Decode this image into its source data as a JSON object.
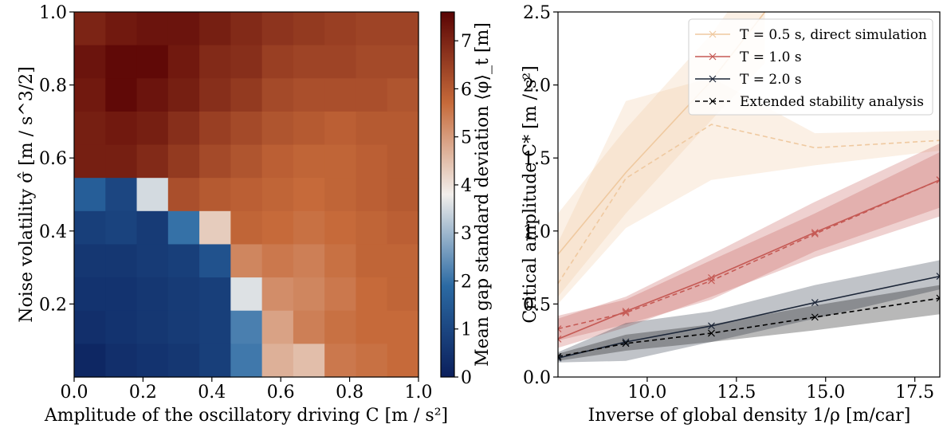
{
  "chart_data": [
    {
      "type": "heatmap",
      "xlabel": "Amplitude of the oscillatory driving C  [m / s²]",
      "ylabel": "Noise volatility σ̂  [m / s^3/2]",
      "xlim": [
        0.0,
        1.0
      ],
      "ylim": [
        0.0,
        1.0
      ],
      "x_ticks": [
        "0.0",
        "0.2",
        "0.4",
        "0.6",
        "0.8",
        "1.0"
      ],
      "y_ticks": [
        "0.2",
        "0.4",
        "0.6",
        "0.8",
        "1.0"
      ],
      "colorbar": {
        "label": "Mean gap standard deviation ⟨φ⟩_t [m]",
        "range": [
          0,
          7.6
        ],
        "ticks": [
          "0",
          "1",
          "2",
          "3",
          "4",
          "5",
          "6",
          "7"
        ],
        "colormap": [
          "#0b1f5c",
          "#2b6aa3",
          "#f2efec",
          "#c66a3a",
          "#5a0404"
        ]
      },
      "grid_size": [
        11,
        11
      ],
      "rows_top_to_bottom": [
        [
          7.0,
          7.2,
          7.3,
          7.3,
          7.1,
          6.9,
          6.7,
          6.6,
          6.5,
          6.4,
          6.4
        ],
        [
          7.3,
          7.5,
          7.5,
          7.2,
          6.9,
          6.8,
          6.5,
          6.4,
          6.4,
          6.3,
          6.3
        ],
        [
          7.2,
          7.5,
          7.3,
          7.1,
          6.8,
          6.6,
          6.3,
          6.2,
          6.2,
          6.2,
          6.1
        ],
        [
          7.1,
          7.2,
          7.1,
          6.8,
          6.5,
          6.3,
          6.1,
          6.0,
          5.9,
          6.0,
          6.0
        ],
        [
          7.1,
          7.1,
          6.9,
          6.6,
          6.3,
          6.1,
          5.9,
          5.8,
          5.8,
          5.9,
          6.0
        ],
        [
          1.6,
          1.0,
          3.5,
          6.2,
          6.0,
          5.9,
          5.8,
          5.7,
          5.8,
          5.9,
          6.0
        ],
        [
          0.8,
          0.9,
          0.7,
          2.0,
          4.3,
          5.8,
          5.7,
          5.6,
          5.7,
          5.8,
          5.9
        ],
        [
          0.6,
          0.6,
          0.7,
          0.8,
          1.3,
          5.3,
          5.5,
          5.4,
          5.6,
          5.8,
          5.8
        ],
        [
          0.5,
          0.5,
          0.6,
          0.7,
          0.8,
          3.6,
          5.2,
          5.3,
          5.5,
          5.7,
          5.8
        ],
        [
          0.4,
          0.5,
          0.6,
          0.7,
          0.8,
          2.2,
          4.9,
          5.4,
          5.6,
          5.7,
          5.7
        ],
        [
          0.2,
          0.4,
          0.5,
          0.6,
          0.8,
          2.1,
          4.7,
          4.5,
          5.5,
          5.6,
          5.7
        ]
      ]
    },
    {
      "type": "line",
      "xlabel": "Inverse of global density 1/ρ [m/car]",
      "ylabel": "Critical amplitude C* [m / s²]",
      "xlim": [
        7.5,
        18.2
      ],
      "ylim": [
        0.0,
        2.5
      ],
      "x_ticks": [
        "10.0",
        "12.5",
        "15.0",
        "17.5"
      ],
      "y_ticks": [
        "0.0",
        "0.5",
        "1.0",
        "1.5",
        "2.0",
        "2.5"
      ],
      "grid": false,
      "legend_position": "top-right",
      "legend": [
        {
          "label": "T = 0.5 s, direct simulation",
          "color": "#efc9a0",
          "style": "solid"
        },
        {
          "label": "T = 1.0 s",
          "color": "#c55a55",
          "style": "solid"
        },
        {
          "label": "T = 2.0 s",
          "color": "#1c2638",
          "style": "solid"
        },
        {
          "label": "Extended stability analysis",
          "color": "#000000",
          "style": "dashed"
        }
      ],
      "series": [
        {
          "color": "#efc9a0",
          "style": "solid",
          "markers": false,
          "x": [
            7.5,
            9.4,
            11.8,
            13.3
          ],
          "y": [
            0.84,
            1.4,
            2.03,
            2.5
          ],
          "band": [
            [
              0.55,
              1.12
            ],
            [
              1.12,
              1.7
            ],
            [
              1.76,
              2.35
            ],
            [
              2.15,
              2.85
            ]
          ]
        },
        {
          "color": "#efc9a0",
          "style": "dashed",
          "markers": false,
          "x": [
            7.5,
            9.4,
            11.8,
            14.7,
            18.2
          ],
          "y": [
            0.64,
            1.36,
            1.73,
            1.57,
            1.62
          ],
          "band": [
            [
              0.5,
              0.92
            ],
            [
              1.02,
              1.89
            ],
            [
              1.35,
              2.05
            ],
            [
              1.45,
              1.67
            ],
            [
              1.55,
              1.69
            ]
          ]
        },
        {
          "color": "#c55a55",
          "style": "solid",
          "markers": true,
          "x": [
            7.5,
            9.4,
            11.8,
            14.7,
            18.2
          ],
          "y": [
            0.26,
            0.45,
            0.68,
            0.99,
            1.35
          ],
          "band": [
            [
              0.2,
              0.4
            ],
            [
              0.34,
              0.55
            ],
            [
              0.55,
              0.84
            ],
            [
              0.82,
              1.2
            ],
            [
              1.1,
              1.6
            ]
          ]
        },
        {
          "color": "#c55a55",
          "style": "dashed",
          "markers": true,
          "x": [
            7.5,
            9.4,
            11.8,
            14.7,
            18.2
          ],
          "y": [
            0.33,
            0.44,
            0.66,
            0.98,
            1.35
          ],
          "band": [
            [
              0.25,
              0.42
            ],
            [
              0.36,
              0.53
            ],
            [
              0.53,
              0.8
            ],
            [
              0.86,
              1.12
            ],
            [
              1.16,
              1.54
            ]
          ]
        },
        {
          "color": "#1c2638",
          "style": "solid",
          "markers": true,
          "x": [
            7.5,
            9.4,
            11.8,
            14.7,
            18.2
          ],
          "y": [
            0.13,
            0.24,
            0.35,
            0.51,
            0.69
          ],
          "band": [
            [
              0.1,
              0.17
            ],
            [
              0.11,
              0.37
            ],
            [
              0.24,
              0.45
            ],
            [
              0.4,
              0.63
            ],
            [
              0.6,
              0.8
            ]
          ]
        },
        {
          "color": "#000000",
          "style": "dashed",
          "markers": true,
          "x": [
            7.5,
            9.4,
            11.8,
            14.7,
            18.2
          ],
          "y": [
            0.14,
            0.23,
            0.3,
            0.41,
            0.54
          ],
          "band": [
            [
              0.11,
              0.16
            ],
            [
              0.18,
              0.29
            ],
            [
              0.24,
              0.36
            ],
            [
              0.32,
              0.49
            ],
            [
              0.43,
              0.63
            ]
          ]
        }
      ]
    }
  ]
}
